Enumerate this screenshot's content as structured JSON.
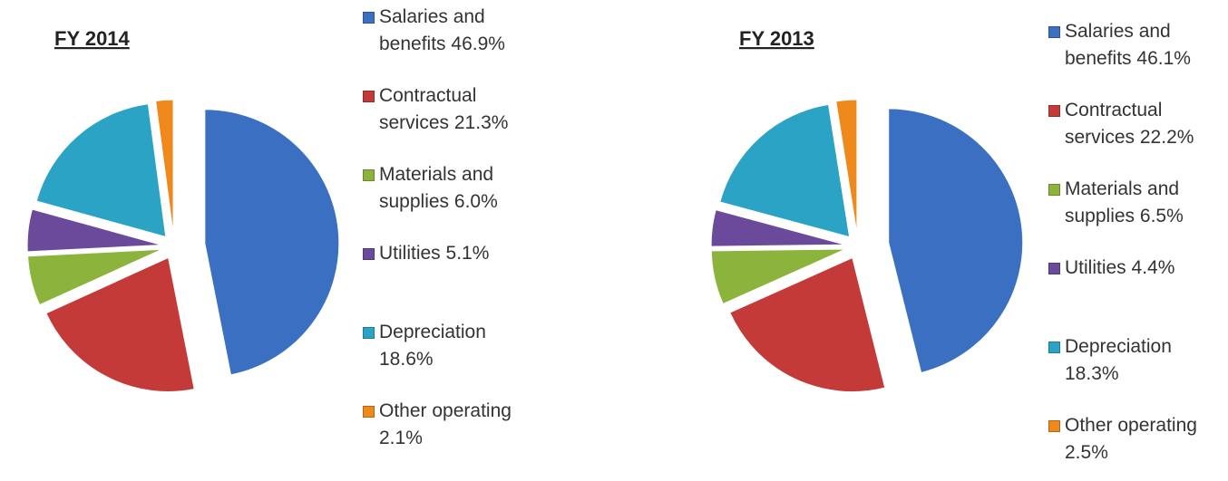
{
  "chart_data": [
    {
      "type": "pie",
      "title": "FY 2014",
      "categories": [
        "Salaries and benefits",
        "Contractual services",
        "Materials and supplies",
        "Utilities",
        "Depreciation",
        "Other operating"
      ],
      "values": [
        46.9,
        21.3,
        6.0,
        5.1,
        18.6,
        2.1
      ],
      "value_labels": [
        "46.9%",
        "21.3%",
        "6.0%",
        "5.1%",
        "18.6%",
        "2.1%"
      ],
      "colors": [
        "#3b6fc2",
        "#c43a38",
        "#8cb43c",
        "#6b4a9c",
        "#2aa3c4",
        "#f0891c"
      ]
    },
    {
      "type": "pie",
      "title": "FY 2013",
      "categories": [
        "Salaries and benefits",
        "Contractual services",
        "Materials and supplies",
        "Utilities",
        "Depreciation",
        "Other operating"
      ],
      "values": [
        46.1,
        22.2,
        6.5,
        4.4,
        18.3,
        2.5
      ],
      "value_labels": [
        "46.1%",
        "22.2%",
        "6.5%",
        "4.4%",
        "18.3%",
        "2.5%"
      ],
      "colors": [
        "#3b6fc2",
        "#c43a38",
        "#8cb43c",
        "#6b4a9c",
        "#2aa3c4",
        "#f0891c"
      ]
    }
  ]
}
